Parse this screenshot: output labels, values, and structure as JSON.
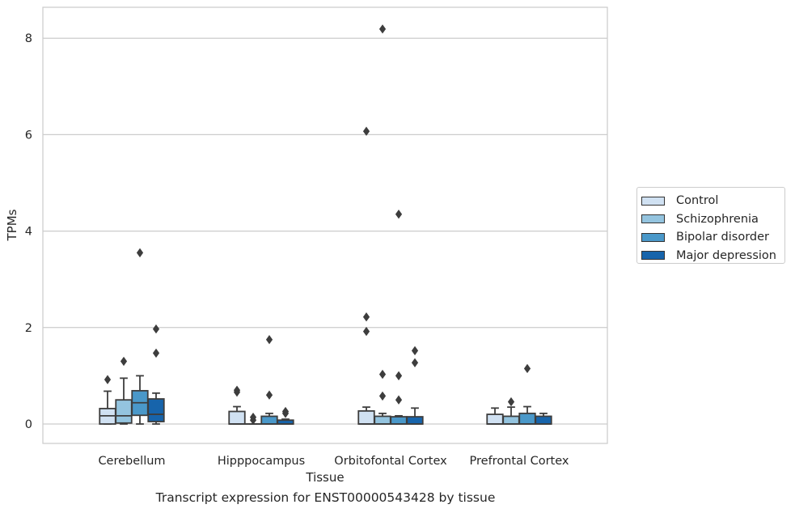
{
  "chart_data": {
    "type": "box",
    "title": "",
    "caption": "Transcript expression for ENST00000543428 by tissue",
    "xlabel": "Tissue",
    "ylabel": "TPMs",
    "ylim": [
      -0.38,
      8.62
    ],
    "yticks": [
      0,
      2,
      4,
      6,
      8
    ],
    "grid": "horizontal",
    "legend_position": "right",
    "categories": [
      "Cerebellum",
      "Hipppocampus",
      "Orbitofontal Cortex",
      "Prefrontal Cortex"
    ],
    "series": [
      {
        "name": "Control",
        "color": "#d0e1f2",
        "boxes": [
          {
            "q1": 0.0,
            "median": 0.17,
            "q3": 0.32,
            "whislo": 0.0,
            "whishi": 0.68,
            "fliers": [
              0.92
            ]
          },
          {
            "q1": 0.0,
            "median": 0.0,
            "q3": 0.26,
            "whislo": 0.0,
            "whishi": 0.36,
            "fliers": [
              0.66,
              0.7
            ]
          },
          {
            "q1": 0.0,
            "median": 0.0,
            "q3": 0.27,
            "whislo": 0.0,
            "whishi": 0.35,
            "fliers": [
              1.92,
              2.22,
              6.07
            ]
          },
          {
            "q1": 0.0,
            "median": 0.0,
            "q3": 0.2,
            "whislo": 0.0,
            "whishi": 0.33,
            "fliers": []
          }
        ]
      },
      {
        "name": "Schizophrenia",
        "color": "#94c4df",
        "boxes": [
          {
            "q1": 0.02,
            "median": 0.17,
            "q3": 0.5,
            "whislo": 0.0,
            "whishi": 0.95,
            "fliers": [
              1.3
            ]
          },
          {
            "q1": 0.0,
            "median": 0.0,
            "q3": 0.0,
            "whislo": 0.0,
            "whishi": 0.0,
            "fliers": [
              0.08,
              0.14
            ]
          },
          {
            "q1": 0.0,
            "median": 0.0,
            "q3": 0.16,
            "whislo": 0.0,
            "whishi": 0.22,
            "fliers": [
              0.58,
              1.03,
              8.19
            ]
          },
          {
            "q1": 0.0,
            "median": 0.0,
            "q3": 0.16,
            "whislo": 0.0,
            "whishi": 0.35,
            "fliers": [
              0.46
            ]
          }
        ]
      },
      {
        "name": "Bipolar disorder",
        "color": "#4a98c9",
        "boxes": [
          {
            "q1": 0.18,
            "median": 0.44,
            "q3": 0.69,
            "whislo": 0.0,
            "whishi": 1.0,
            "fliers": [
              3.55
            ]
          },
          {
            "q1": 0.0,
            "median": 0.0,
            "q3": 0.16,
            "whislo": 0.0,
            "whishi": 0.22,
            "fliers": [
              0.6,
              1.75
            ]
          },
          {
            "q1": 0.0,
            "median": 0.0,
            "q3": 0.15,
            "whislo": 0.0,
            "whishi": 0.17,
            "fliers": [
              0.5,
              1.0,
              4.35
            ]
          },
          {
            "q1": 0.0,
            "median": 0.0,
            "q3": 0.22,
            "whislo": 0.0,
            "whishi": 0.36,
            "fliers": [
              1.15
            ]
          }
        ]
      },
      {
        "name": "Major depression",
        "color": "#1764ab",
        "boxes": [
          {
            "q1": 0.05,
            "median": 0.2,
            "q3": 0.52,
            "whislo": 0.0,
            "whishi": 0.64,
            "fliers": [
              1.47,
              1.97
            ]
          },
          {
            "q1": 0.0,
            "median": 0.0,
            "q3": 0.08,
            "whislo": 0.0,
            "whishi": 0.1,
            "fliers": [
              0.22,
              0.26
            ]
          },
          {
            "q1": 0.0,
            "median": 0.0,
            "q3": 0.15,
            "whislo": 0.0,
            "whishi": 0.33,
            "fliers": [
              1.27,
              1.52
            ]
          },
          {
            "q1": 0.0,
            "median": 0.0,
            "q3": 0.16,
            "whislo": 0.0,
            "whishi": 0.22,
            "fliers": []
          }
        ]
      }
    ]
  }
}
